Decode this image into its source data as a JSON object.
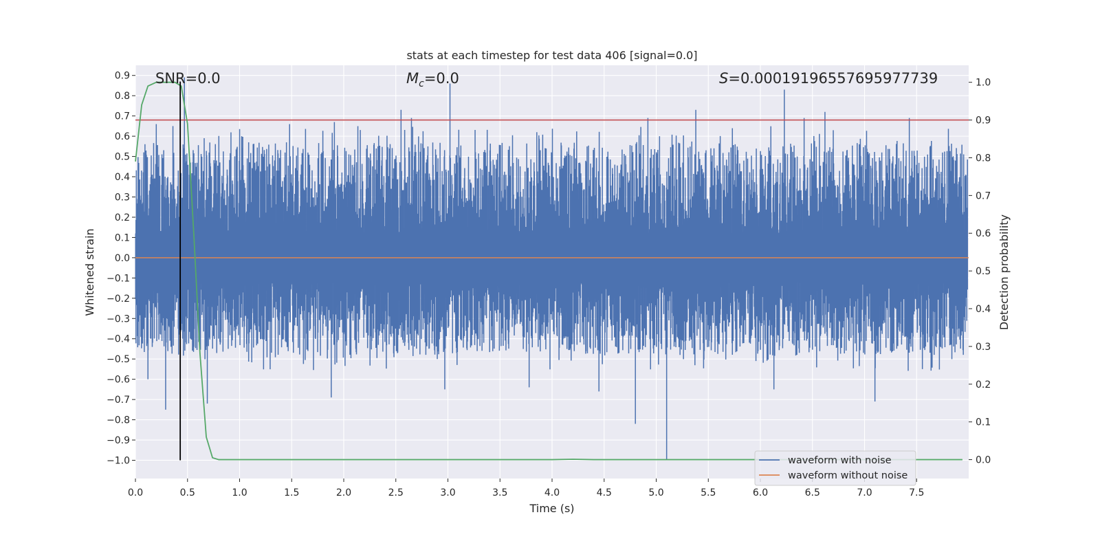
{
  "chart_data": {
    "type": "line",
    "title": "stats at each timestep for test data 406 [signal=0.0]",
    "xlabel": "Time (s)",
    "ylabel": "Whitened strain",
    "y2label": "Detection probability",
    "xlim": [
      0.0,
      8.0
    ],
    "ylim": [
      -1.09,
      0.95
    ],
    "y2lim": [
      -0.05,
      1.045
    ],
    "x_ticks": [
      0.0,
      0.5,
      1.0,
      1.5,
      2.0,
      2.5,
      3.0,
      3.5,
      4.0,
      4.5,
      5.0,
      5.5,
      6.0,
      6.5,
      7.0,
      7.5
    ],
    "y_ticks": [
      0.9,
      0.8,
      0.7,
      0.6,
      0.5,
      0.4,
      0.3,
      0.2,
      0.1,
      0.0,
      -0.1,
      -0.2,
      -0.3,
      -0.4,
      -0.5,
      -0.6,
      -0.7,
      -0.8,
      -0.9,
      -1.0
    ],
    "y2_ticks": [
      1.0,
      0.9,
      0.8,
      0.7,
      0.6,
      0.5,
      0.4,
      0.3,
      0.2,
      0.1,
      0.0
    ],
    "grid": true,
    "legend_position": "lower-right",
    "annotations": {
      "snr": "SNR=0.0",
      "mc_symbol": "M",
      "mc_sub": "c",
      "mc_value": "=0.0",
      "s_symbol": "S",
      "s_value": "=0.00019196557695977739"
    },
    "series": [
      {
        "name": "waveform with noise",
        "color": "#4c72b0",
        "axis": "left",
        "envelope_typical": [
          -0.48,
          0.57
        ],
        "peaks": [
          {
            "x": 0.08,
            "y": 0.52
          },
          {
            "x": 0.12,
            "y": -0.6
          },
          {
            "x": 0.2,
            "y": 0.66
          },
          {
            "x": 0.29,
            "y": -0.75
          },
          {
            "x": 0.36,
            "y": 0.65
          },
          {
            "x": 0.47,
            "y": 0.89
          },
          {
            "x": 0.66,
            "y": 0.59
          },
          {
            "x": 0.69,
            "y": -0.72
          },
          {
            "x": 1.02,
            "y": 0.6
          },
          {
            "x": 1.48,
            "y": 0.66
          },
          {
            "x": 1.88,
            "y": -0.69
          },
          {
            "x": 1.91,
            "y": 0.67
          },
          {
            "x": 2.55,
            "y": 0.73
          },
          {
            "x": 2.65,
            "y": 0.69
          },
          {
            "x": 2.97,
            "y": -0.65
          },
          {
            "x": 3.02,
            "y": 0.86
          },
          {
            "x": 3.78,
            "y": -0.64
          },
          {
            "x": 4.45,
            "y": -0.66
          },
          {
            "x": 4.8,
            "y": -0.82
          },
          {
            "x": 4.92,
            "y": 0.69
          },
          {
            "x": 5.1,
            "y": -1.0
          },
          {
            "x": 5.38,
            "y": 0.73
          },
          {
            "x": 6.13,
            "y": -0.65
          },
          {
            "x": 6.23,
            "y": 0.83
          },
          {
            "x": 6.42,
            "y": 0.69
          },
          {
            "x": 6.62,
            "y": 0.72
          },
          {
            "x": 7.1,
            "y": -0.71
          },
          {
            "x": 7.43,
            "y": 0.69
          }
        ]
      },
      {
        "name": "waveform without noise",
        "color": "#dd8452",
        "axis": "left",
        "constant": 0.0
      },
      {
        "name": "",
        "color": "#55a868",
        "axis": "right",
        "points": [
          [
            0.0,
            0.79
          ],
          [
            0.06,
            0.94
          ],
          [
            0.12,
            0.99
          ],
          [
            0.2,
            1.0
          ],
          [
            0.3,
            1.0
          ],
          [
            0.38,
            1.0
          ],
          [
            0.44,
            0.99
          ],
          [
            0.5,
            0.89
          ],
          [
            0.56,
            0.6
          ],
          [
            0.62,
            0.28
          ],
          [
            0.68,
            0.06
          ],
          [
            0.74,
            0.005
          ],
          [
            0.8,
            0.0
          ],
          [
            1.0,
            0.0
          ],
          [
            2.0,
            0.0
          ],
          [
            3.0,
            0.0
          ],
          [
            4.0,
            0.0
          ],
          [
            4.2,
            0.001
          ],
          [
            4.4,
            0.0
          ],
          [
            5.0,
            0.0
          ],
          [
            6.0,
            0.0
          ],
          [
            7.0,
            0.0
          ],
          [
            7.94,
            0.0
          ]
        ]
      }
    ],
    "threshold": {
      "axis": "right",
      "value": 0.9,
      "color": "#c44e52"
    },
    "marker_time": {
      "x": 0.43,
      "color": "#000000"
    }
  }
}
